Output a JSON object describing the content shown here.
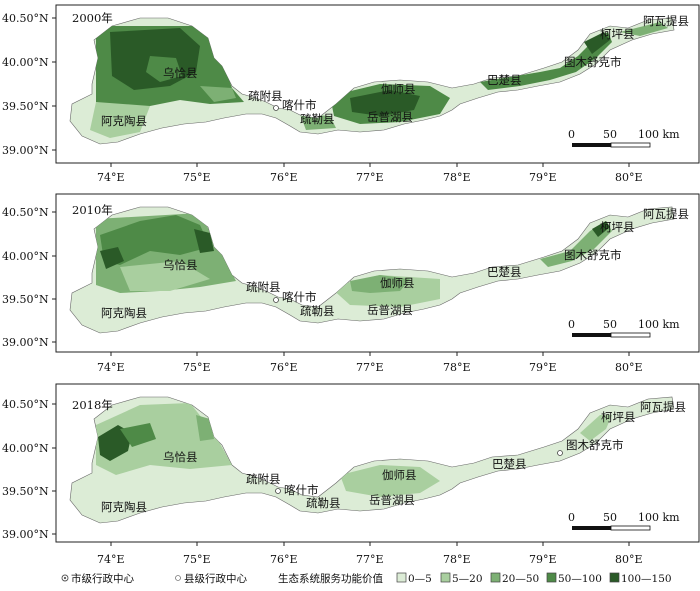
{
  "panels": [
    {
      "year": "2000年",
      "region_fill_base": "#dcecd6"
    },
    {
      "year": "2010年",
      "region_fill_base": "#dcecd6"
    },
    {
      "year": "2018年",
      "region_fill_base": "#dcecd6"
    }
  ],
  "place_labels": {
    "wuqia": "乌恰县",
    "akto": "阿克陶县",
    "shufu": "疏附县",
    "kashi": "喀什市",
    "shule": "疏勒县",
    "jiashi": "伽师县",
    "yuepuhu": "岳普湖县",
    "bachu": "巴楚县",
    "tumushuke": "图木舒克市",
    "kalpin": "柯坪县",
    "awati": "阿瓦提县"
  },
  "axes": {
    "x_ticks": [
      "74°E",
      "75°E",
      "76°E",
      "77°E",
      "78°E",
      "79°E",
      "80°E"
    ],
    "y_ticks": [
      "40.50°N",
      "40.00°N",
      "39.50°N",
      "39.00°N"
    ]
  },
  "scale_bar": {
    "labels": [
      "0",
      "50",
      "100 km"
    ]
  },
  "legend": {
    "city_center": "市级行政中心",
    "county_center": "县级行政中心",
    "value_title": "生态系统服务功能价值",
    "classes": [
      {
        "label": "0—5",
        "color": "#dcecd6"
      },
      {
        "label": "5—20",
        "color": "#a9cf9f"
      },
      {
        "label": "20—50",
        "color": "#7db074"
      },
      {
        "label": "50—100",
        "color": "#4e8a47"
      },
      {
        "label": "100—150",
        "color": "#2a5a27"
      }
    ]
  }
}
